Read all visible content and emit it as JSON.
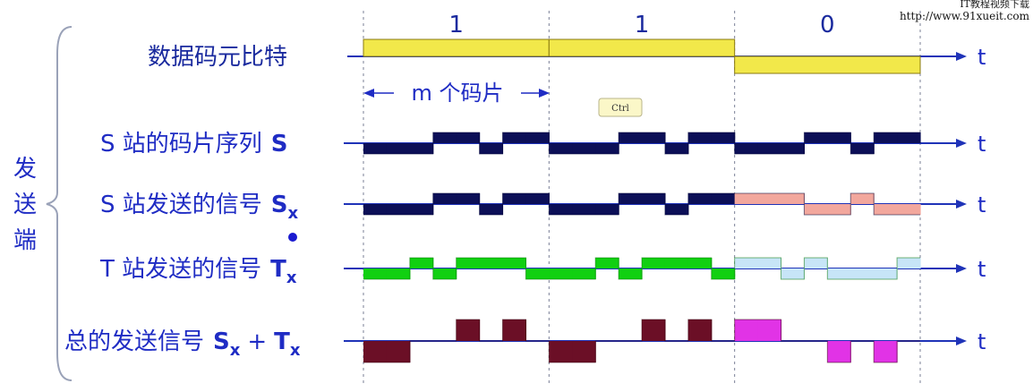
{
  "watermark": {
    "line1": "IT教程视频下载",
    "line2": "http://www.91xueit.com"
  },
  "section_label": "发送端",
  "chip_annotation": "m 个码片",
  "ctrl_badge": "Ctrl",
  "bit_values": [
    "1",
    "1",
    "0"
  ],
  "axis_label": "t",
  "colors": {
    "data_bit": "#f2e84a",
    "s_sequence": "#0c0f57",
    "s_signal_bit0": "#f2a79d",
    "t_signal": "#11d011",
    "t_signal_bit0": "#c7e5f7",
    "sum_bits": "#6b0f26",
    "sum_bit0": "#e133e6",
    "axis": "#1f33b8",
    "label_text": "#1f2cc4"
  },
  "rows": [
    {
      "id": "data",
      "label": "数据码元比特",
      "sub": "",
      "levels": [
        1,
        1,
        0
      ],
      "chips": 1
    },
    {
      "id": "s-seq",
      "label": "S 站的码片序列",
      "sub": "",
      "bold_symbol": "S",
      "levels": [
        -1,
        -1,
        -1,
        1,
        1,
        -1,
        1,
        1,
        -1,
        -1,
        -1,
        1,
        1,
        -1,
        1,
        1,
        -1,
        -1,
        -1,
        1,
        1,
        -1,
        1,
        1
      ]
    },
    {
      "id": "s-signal",
      "label": "S 站发送的信号",
      "bold_symbol": "S",
      "sub": "x",
      "levels": [
        -1,
        -1,
        -1,
        1,
        1,
        -1,
        1,
        1,
        -1,
        -1,
        -1,
        1,
        1,
        -1,
        1,
        1,
        1,
        1,
        1,
        -1,
        -1,
        1,
        -1,
        -1
      ]
    },
    {
      "id": "t-signal",
      "label": "T 站发送的信号",
      "bold_symbol": "T",
      "sub": "x",
      "levels": [
        -1,
        -1,
        1,
        -1,
        1,
        1,
        1,
        -1,
        -1,
        -1,
        1,
        -1,
        1,
        1,
        1,
        -1,
        1,
        1,
        -1,
        1,
        -1,
        -1,
        -1,
        1
      ]
    },
    {
      "id": "sum-signal",
      "label": "总的发送信号",
      "bold_symbol": "S",
      "sub": "x",
      "plus": "+",
      "bold_symbol2": "T",
      "sub2": "x",
      "levels": [
        -2,
        -2,
        0,
        0,
        2,
        0,
        2,
        0,
        -2,
        -2,
        0,
        0,
        2,
        0,
        2,
        0,
        2,
        2,
        0,
        0,
        -2,
        0,
        -2,
        0
      ]
    }
  ]
}
